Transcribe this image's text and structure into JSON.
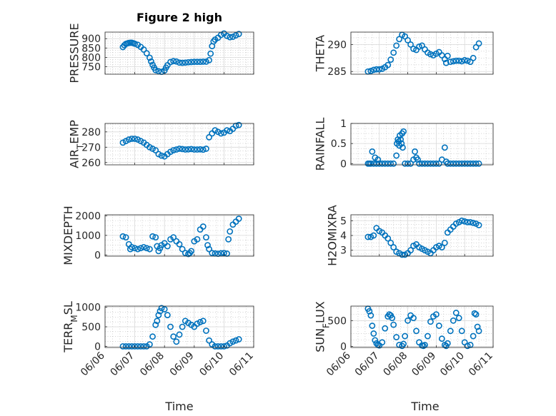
{
  "figure": {
    "title": "Figure 2 high",
    "marker_color": "#0072BD",
    "x_axis": {
      "label": "Time",
      "ticks": [
        "06/06",
        "06/07",
        "06/08",
        "06/09",
        "06/10",
        "06/11"
      ]
    }
  },
  "chart_data": [
    {
      "id": "pressure",
      "type": "scatter",
      "title": "Figure 2 high",
      "ylabel": "PRESSURE",
      "ylim": [
        710,
        935
      ],
      "yticks": [
        750,
        800,
        850,
        900
      ],
      "grid": true,
      "xlim": [
        0,
        5
      ],
      "x": [
        0.6,
        0.65,
        0.7,
        0.75,
        0.8,
        0.85,
        0.9,
        0.95,
        1.0,
        1.1,
        1.2,
        1.3,
        1.4,
        1.5,
        1.55,
        1.6,
        1.65,
        1.7,
        1.8,
        1.9,
        2.0,
        2.05,
        2.1,
        2.2,
        2.3,
        2.4,
        2.5,
        2.6,
        2.7,
        2.8,
        2.9,
        3.0,
        3.1,
        3.2,
        3.3,
        3.4,
        3.5,
        3.55,
        3.6,
        3.65,
        3.7,
        3.8,
        3.9,
        4.0,
        4.1,
        4.2,
        4.3,
        4.4,
        4.5
      ],
      "values": [
        855,
        865,
        872,
        875,
        877,
        878,
        878,
        876,
        873,
        867,
        856,
        842,
        822,
        798,
        778,
        760,
        745,
        732,
        726,
        723,
        730,
        745,
        758,
        775,
        780,
        778,
        772,
        771,
        772,
        774,
        775,
        776,
        776,
        776,
        777,
        777,
        785,
        820,
        860,
        885,
        895,
        905,
        920,
        928,
        915,
        908,
        910,
        918,
        925
      ]
    },
    {
      "id": "theta",
      "type": "scatter",
      "ylabel": "THETA",
      "ylim": [
        284.5,
        292.3
      ],
      "yticks": [
        285,
        290
      ],
      "grid": true,
      "xlim": [
        0,
        5
      ],
      "x": [
        0.6,
        0.7,
        0.8,
        0.9,
        1.0,
        1.1,
        1.2,
        1.3,
        1.4,
        1.5,
        1.6,
        1.7,
        1.8,
        1.9,
        2.0,
        2.1,
        2.2,
        2.3,
        2.4,
        2.5,
        2.6,
        2.7,
        2.8,
        2.9,
        3.0,
        3.1,
        3.2,
        3.3,
        3.35,
        3.4,
        3.5,
        3.6,
        3.7,
        3.8,
        3.9,
        4.0,
        4.1,
        4.2,
        4.3,
        4.4,
        4.5
      ],
      "values": [
        285.0,
        285.1,
        285.3,
        285.4,
        285.4,
        285.5,
        285.8,
        286.2,
        287.2,
        288.5,
        289.8,
        291.0,
        291.8,
        291.5,
        290.8,
        290.0,
        289.2,
        289.0,
        289.6,
        289.8,
        289.1,
        288.5,
        288.2,
        288.0,
        288.3,
        288.6,
        288.0,
        287.3,
        286.6,
        287.9,
        286.8,
        286.9,
        287.0,
        287.0,
        286.9,
        287.1,
        287.0,
        286.8,
        287.5,
        289.5,
        290.2
      ]
    },
    {
      "id": "air_temp",
      "type": "scatter",
      "ylabel": "AIR_TEMP",
      "ylabel_main": "AIR",
      "ylabel_sub": "T",
      "ylabel_rest": "EMP",
      "ylim": [
        258.5,
        285.5
      ],
      "yticks": [
        260,
        270,
        280
      ],
      "grid": true,
      "xlim": [
        0,
        5
      ],
      "x": [
        0.6,
        0.7,
        0.8,
        0.9,
        1.0,
        1.1,
        1.2,
        1.3,
        1.4,
        1.5,
        1.6,
        1.7,
        1.8,
        1.9,
        2.0,
        2.1,
        2.2,
        2.3,
        2.4,
        2.5,
        2.6,
        2.7,
        2.8,
        2.9,
        3.0,
        3.1,
        3.2,
        3.3,
        3.4,
        3.5,
        3.6,
        3.7,
        3.8,
        3.9,
        4.0,
        4.1,
        4.2,
        4.3,
        4.4,
        4.5
      ],
      "values": [
        273.0,
        274.0,
        275.0,
        275.5,
        275.5,
        275.0,
        274.0,
        273.0,
        271.5,
        270.0,
        269.0,
        268.0,
        265.5,
        264.5,
        264.0,
        265.5,
        267.0,
        268.0,
        268.5,
        269.0,
        268.8,
        268.5,
        268.6,
        268.8,
        268.5,
        268.5,
        268.6,
        268.4,
        269.0,
        276.5,
        279.0,
        281.0,
        280.0,
        279.0,
        279.5,
        281.0,
        280.5,
        282.0,
        284.0,
        284.5
      ]
    },
    {
      "id": "rainfall",
      "type": "scatter",
      "ylabel": "RAINFALL",
      "ylim": [
        -0.03,
        1.0
      ],
      "yticks": [
        0,
        0.5,
        1
      ],
      "ytick_labels": [
        "0",
        "0.5",
        "1"
      ],
      "grid": true,
      "xlim": [
        0,
        5
      ],
      "x": [
        0.6,
        0.65,
        0.7,
        0.75,
        0.8,
        0.85,
        0.9,
        0.95,
        1.0,
        1.1,
        1.2,
        1.3,
        1.4,
        1.5,
        1.6,
        1.62,
        1.65,
        1.68,
        1.7,
        1.72,
        1.75,
        1.78,
        1.8,
        1.82,
        1.85,
        1.9,
        2.0,
        2.1,
        2.2,
        2.25,
        2.3,
        2.35,
        2.4,
        2.5,
        2.6,
        2.7,
        2.8,
        2.9,
        3.0,
        3.1,
        3.2,
        3.3,
        3.35,
        3.4,
        3.5,
        3.6,
        3.7,
        3.8,
        3.9,
        4.0,
        4.1,
        4.2,
        4.3,
        4.4,
        4.5
      ],
      "values": [
        0,
        0,
        0,
        0.3,
        0,
        0.15,
        0,
        0.1,
        0,
        0,
        0,
        0,
        0,
        0,
        0.2,
        0.5,
        0.6,
        0.55,
        0.45,
        0.7,
        0.6,
        0.5,
        0.75,
        0.4,
        0.8,
        0,
        0,
        0,
        0.1,
        0.3,
        0.15,
        0.1,
        0,
        0,
        0,
        0,
        0,
        0,
        0,
        0,
        0.1,
        0.4,
        0.05,
        0,
        0,
        0,
        0,
        0,
        0,
        0,
        0,
        0,
        0,
        0,
        0
      ]
    },
    {
      "id": "mixdepth",
      "type": "scatter",
      "ylabel": "MIXDEPTH",
      "ylim": [
        -60,
        2050
      ],
      "yticks": [
        0,
        1000,
        2000
      ],
      "grid": true,
      "xlim": [
        0,
        5
      ],
      "x": [
        0.6,
        0.7,
        0.8,
        0.85,
        0.9,
        1.0,
        1.1,
        1.2,
        1.3,
        1.4,
        1.5,
        1.6,
        1.7,
        1.75,
        1.8,
        1.85,
        1.9,
        2.0,
        2.1,
        2.2,
        2.3,
        2.4,
        2.5,
        2.6,
        2.7,
        2.8,
        2.85,
        2.9,
        3.0,
        3.1,
        3.2,
        3.3,
        3.4,
        3.45,
        3.5,
        3.6,
        3.7,
        3.8,
        3.9,
        4.0,
        4.1,
        4.15,
        4.2,
        4.3,
        4.4,
        4.5
      ],
      "values": [
        950,
        900,
        550,
        300,
        400,
        350,
        300,
        350,
        400,
        350,
        300,
        950,
        900,
        450,
        200,
        350,
        500,
        600,
        450,
        800,
        900,
        700,
        550,
        300,
        100,
        50,
        100,
        200,
        700,
        800,
        1300,
        1450,
        900,
        500,
        300,
        100,
        80,
        60,
        90,
        100,
        70,
        800,
        1200,
        1550,
        1700,
        1850
      ]
    },
    {
      "id": "h2omixra",
      "type": "scatter",
      "ylabel": "H2OMIXRA",
      "ylim": [
        2.6,
        5.4
      ],
      "yticks": [
        3,
        4,
        5
      ],
      "grid": true,
      "xlim": [
        0,
        5
      ],
      "x": [
        0.6,
        0.7,
        0.8,
        0.9,
        1.0,
        1.1,
        1.2,
        1.3,
        1.4,
        1.5,
        1.6,
        1.7,
        1.8,
        1.9,
        2.0,
        2.1,
        2.2,
        2.3,
        2.4,
        2.5,
        2.6,
        2.7,
        2.8,
        2.9,
        3.0,
        3.1,
        3.2,
        3.3,
        3.4,
        3.5,
        3.6,
        3.7,
        3.8,
        3.9,
        4.0,
        4.1,
        4.2,
        4.3,
        4.4,
        4.5
      ],
      "values": [
        3.9,
        3.9,
        4.0,
        4.5,
        4.3,
        4.2,
        4.0,
        3.8,
        3.5,
        3.2,
        2.9,
        2.8,
        2.7,
        2.7,
        2.8,
        3.0,
        3.3,
        3.4,
        3.2,
        3.1,
        3.0,
        2.9,
        2.8,
        3.0,
        3.2,
        3.3,
        3.2,
        3.5,
        4.2,
        4.4,
        4.6,
        4.8,
        4.9,
        5.0,
        4.95,
        4.9,
        4.9,
        4.85,
        4.8,
        4.7
      ]
    },
    {
      "id": "terr_msl",
      "type": "scatter",
      "ylabel": "TERR_MSL",
      "ylabel_main": "TERR",
      "ylabel_sub": "M",
      "ylabel_rest": "SL",
      "ylim": [
        -30,
        1030
      ],
      "yticks": [
        0,
        500,
        1000
      ],
      "grid": true,
      "xlim": [
        0,
        5
      ],
      "x": [
        0.6,
        0.7,
        0.8,
        0.9,
        1.0,
        1.1,
        1.2,
        1.3,
        1.4,
        1.5,
        1.6,
        1.7,
        1.75,
        1.8,
        1.85,
        1.9,
        2.0,
        2.1,
        2.2,
        2.3,
        2.4,
        2.5,
        2.6,
        2.7,
        2.8,
        2.9,
        3.0,
        3.1,
        3.2,
        3.3,
        3.4,
        3.5,
        3.6,
        3.7,
        3.8,
        3.9,
        4.0,
        4.1,
        4.2,
        4.3,
        4.4,
        4.5
      ],
      "values": [
        0,
        0,
        0,
        0,
        0,
        0,
        0,
        0,
        0,
        50,
        250,
        550,
        650,
        800,
        900,
        980,
        950,
        800,
        500,
        250,
        120,
        300,
        500,
        650,
        600,
        550,
        500,
        580,
        620,
        650,
        400,
        150,
        50,
        0,
        0,
        0,
        0,
        20,
        80,
        120,
        150,
        180
      ]
    },
    {
      "id": "sun_flux",
      "type": "scatter",
      "ylabel": "SUN_FLUX",
      "ylabel_main": "SUN",
      "ylabel_sub": "F",
      "ylabel_rest": "LUX",
      "ylim": [
        -20,
        780
      ],
      "yticks": [
        0,
        500
      ],
      "grid": true,
      "xlim": [
        0,
        5
      ],
      "x": [
        0.6,
        0.65,
        0.7,
        0.75,
        0.8,
        0.85,
        0.9,
        0.95,
        1.0,
        1.1,
        1.2,
        1.3,
        1.35,
        1.4,
        1.45,
        1.5,
        1.6,
        1.7,
        1.8,
        1.85,
        1.9,
        2.0,
        2.1,
        2.2,
        2.3,
        2.4,
        2.5,
        2.55,
        2.6,
        2.7,
        2.8,
        2.9,
        3.0,
        3.1,
        3.2,
        3.3,
        3.35,
        3.4,
        3.5,
        3.6,
        3.7,
        3.8,
        3.9,
        4.0,
        4.1,
        4.2,
        4.3,
        4.35,
        4.4,
        4.45,
        4.5
      ],
      "values": [
        730,
        680,
        600,
        400,
        250,
        120,
        60,
        30,
        20,
        80,
        350,
        580,
        620,
        600,
        550,
        420,
        180,
        30,
        10,
        50,
        200,
        500,
        600,
        550,
        300,
        80,
        20,
        10,
        30,
        200,
        480,
        580,
        620,
        400,
        150,
        30,
        10,
        60,
        300,
        500,
        650,
        550,
        300,
        80,
        10,
        30,
        200,
        640,
        620,
        380,
        300
      ]
    }
  ]
}
